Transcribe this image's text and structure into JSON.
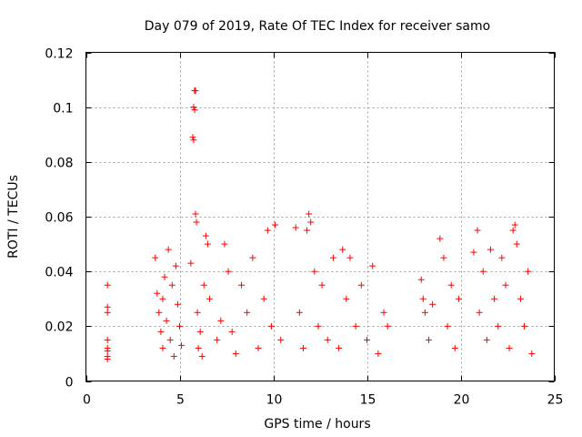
{
  "chart_data": {
    "type": "scatter",
    "title": "Day 079 of 2019, Rate Of TEC Index for receiver samo",
    "xlabel": "GPS time / hours",
    "ylabel": "ROTI / TECUs",
    "xlim": [
      0,
      25
    ],
    "ylim": [
      0,
      0.12
    ],
    "xticks": [
      0,
      5,
      10,
      15,
      20,
      25
    ],
    "xtick_labels": [
      "0",
      "5",
      "10",
      "15",
      "20",
      "25"
    ],
    "yticks": [
      0,
      0.02,
      0.04,
      0.06,
      0.08,
      0.1,
      0.12
    ],
    "ytick_labels": [
      "0",
      "0.02",
      "0.04",
      "0.06",
      "0.08",
      "0.1",
      "0.12"
    ],
    "grid": true,
    "marker": "+",
    "marker_color": "#ff0000",
    "series": [
      {
        "name": "ROTI",
        "x": [
          1.15,
          1.15,
          1.15,
          1.15,
          1.15,
          1.15,
          1.15,
          1.15,
          3.7,
          3.8,
          3.9,
          4.0,
          4.1,
          4.1,
          4.2,
          4.3,
          4.4,
          4.5,
          4.6,
          4.7,
          4.8,
          4.9,
          5.0,
          5.1,
          5.6,
          5.7,
          5.75,
          5.75,
          5.8,
          5.8,
          5.85,
          5.85,
          5.9,
          5.95,
          6.0,
          6.1,
          6.2,
          6.3,
          6.4,
          6.5,
          6.6,
          7.0,
          7.2,
          7.4,
          7.6,
          7.8,
          8.0,
          8.3,
          8.6,
          8.9,
          9.2,
          9.5,
          9.7,
          9.9,
          10.1,
          10.4,
          11.2,
          11.4,
          11.6,
          11.8,
          11.9,
          12.0,
          12.2,
          12.4,
          12.6,
          12.9,
          13.2,
          13.5,
          13.7,
          13.9,
          14.1,
          14.4,
          14.7,
          15.0,
          15.3,
          15.6,
          15.9,
          16.1,
          17.9,
          18.0,
          18.1,
          18.3,
          18.5,
          18.9,
          19.1,
          19.3,
          19.5,
          19.7,
          19.9,
          20.7,
          20.9,
          21.0,
          21.2,
          21.4,
          21.6,
          21.8,
          22.0,
          22.2,
          22.4,
          22.6,
          22.8,
          22.9,
          23.0,
          23.2,
          23.4,
          23.6,
          23.8
        ],
        "y": [
          0.035,
          0.027,
          0.025,
          0.015,
          0.012,
          0.011,
          0.009,
          0.008,
          0.045,
          0.032,
          0.025,
          0.018,
          0.03,
          0.012,
          0.038,
          0.022,
          0.048,
          0.015,
          0.035,
          0.009,
          0.042,
          0.028,
          0.02,
          0.013,
          0.043,
          0.089,
          0.088,
          0.1,
          0.099,
          0.106,
          0.106,
          0.061,
          0.058,
          0.025,
          0.012,
          0.018,
          0.009,
          0.035,
          0.053,
          0.05,
          0.03,
          0.015,
          0.022,
          0.05,
          0.04,
          0.018,
          0.01,
          0.035,
          0.025,
          0.045,
          0.012,
          0.03,
          0.055,
          0.02,
          0.057,
          0.015,
          0.056,
          0.025,
          0.012,
          0.055,
          0.061,
          0.058,
          0.04,
          0.02,
          0.035,
          0.015,
          0.045,
          0.012,
          0.048,
          0.03,
          0.045,
          0.02,
          0.035,
          0.015,
          0.042,
          0.01,
          0.025,
          0.02,
          0.037,
          0.03,
          0.025,
          0.015,
          0.028,
          0.052,
          0.045,
          0.02,
          0.035,
          0.012,
          0.03,
          0.047,
          0.055,
          0.025,
          0.04,
          0.015,
          0.048,
          0.03,
          0.02,
          0.045,
          0.035,
          0.012,
          0.055,
          0.057,
          0.05,
          0.03,
          0.02,
          0.04,
          0.01
        ]
      }
    ]
  }
}
